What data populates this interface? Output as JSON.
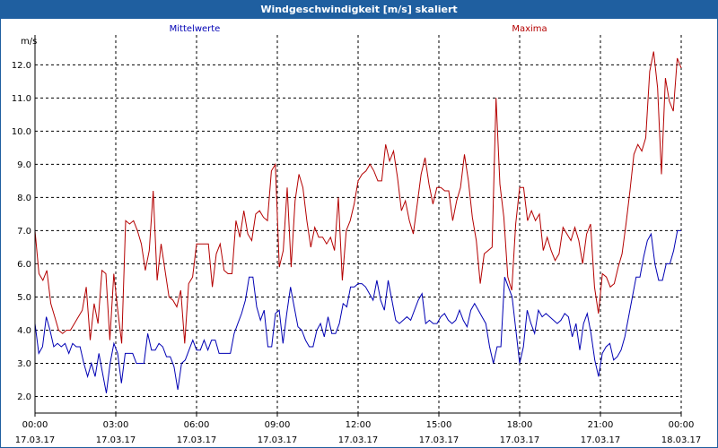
{
  "window": {
    "title": "Windgeschwindigkeit [m/s] skaliert"
  },
  "colors": {
    "titlebar": "#1f5fa0",
    "series_mittel": "#0000b4",
    "series_max": "#b40000",
    "grid": "#000000"
  },
  "chart_data": {
    "type": "line",
    "ylabel": "m/s",
    "ylim": [
      1.5,
      12.9
    ],
    "xlim": [
      0,
      1440
    ],
    "grid": true,
    "legend_placement": "top",
    "y_ticks": [
      "2.0",
      "3.0",
      "4.0",
      "5.0",
      "6.0",
      "7.0",
      "8.0",
      "9.0",
      "10.0",
      "11.0",
      "12.0"
    ],
    "x_ticks": [
      {
        "time": "00:00",
        "date": "17.03.17"
      },
      {
        "time": "03:00",
        "date": "17.03.17"
      },
      {
        "time": "06:00",
        "date": "17.03.17"
      },
      {
        "time": "09:00",
        "date": "17.03.17"
      },
      {
        "time": "12:00",
        "date": "17.03.17"
      },
      {
        "time": "15:00",
        "date": "17.03.17"
      },
      {
        "time": "18:00",
        "date": "17.03.17"
      },
      {
        "time": "21:00",
        "date": "17.03.17"
      },
      {
        "time": "00:00",
        "date": "18.03.17"
      }
    ],
    "series": [
      {
        "name": "Mittelwerte",
        "color": "#0000b4",
        "values": [
          4.2,
          3.3,
          3.5,
          4.4,
          4.0,
          3.5,
          3.6,
          3.5,
          3.6,
          3.3,
          3.6,
          3.5,
          3.5,
          3.0,
          2.6,
          3.0,
          2.6,
          3.3,
          2.7,
          2.1,
          3.0,
          3.6,
          3.3,
          2.4,
          3.3,
          3.3,
          3.3,
          3.0,
          3.0,
          3.0,
          3.9,
          3.4,
          3.4,
          3.6,
          3.5,
          3.2,
          3.2,
          2.9,
          2.2,
          3.0,
          3.1,
          3.4,
          3.7,
          3.4,
          3.4,
          3.7,
          3.4,
          3.7,
          3.7,
          3.3,
          3.3,
          3.3,
          3.3,
          3.9,
          4.2,
          4.5,
          4.9,
          5.6,
          5.6,
          4.7,
          4.3,
          4.6,
          3.5,
          3.5,
          4.5,
          4.6,
          3.6,
          4.5,
          5.3,
          4.7,
          4.1,
          4.0,
          3.7,
          3.5,
          3.5,
          4.0,
          4.2,
          3.8,
          4.4,
          3.9,
          3.9,
          4.2,
          4.8,
          4.7,
          5.3,
          5.3,
          5.4,
          5.4,
          5.3,
          5.1,
          4.9,
          5.5,
          4.9,
          4.6,
          5.5,
          4.9,
          4.3,
          4.2,
          4.3,
          4.4,
          4.3,
          4.6,
          4.9,
          5.1,
          4.2,
          4.3,
          4.2,
          4.2,
          4.4,
          4.5,
          4.3,
          4.2,
          4.3,
          4.6,
          4.3,
          4.1,
          4.6,
          4.8,
          4.6,
          4.4,
          4.2,
          3.5,
          3.0,
          3.5,
          3.5,
          5.6,
          5.3,
          5.0,
          4.0,
          3.0,
          3.5,
          4.6,
          4.2,
          3.9,
          4.6,
          4.4,
          4.5,
          4.4,
          4.3,
          4.2,
          4.3,
          4.5,
          4.4,
          3.8,
          4.2,
          3.4,
          4.2,
          4.5,
          3.9,
          3.1,
          2.6,
          3.3,
          3.5,
          3.6,
          3.1,
          3.2,
          3.4,
          3.8,
          4.4,
          5.0,
          5.6,
          5.6,
          6.2,
          6.7,
          6.9,
          6.0,
          5.5,
          5.5,
          6.0,
          6.0,
          6.4,
          7.0,
          7.0
        ]
      },
      {
        "name": "Maxima",
        "color": "#b40000",
        "values": [
          7.0,
          5.7,
          5.5,
          5.8,
          4.8,
          4.4,
          4.0,
          3.9,
          4.0,
          4.0,
          4.2,
          4.4,
          4.6,
          5.3,
          3.7,
          4.8,
          4.2,
          5.8,
          5.7,
          3.7,
          5.7,
          4.6,
          3.6,
          7.3,
          7.2,
          7.3,
          7.0,
          6.6,
          5.8,
          6.4,
          8.2,
          5.5,
          6.6,
          5.8,
          5.0,
          4.9,
          4.7,
          5.2,
          3.6,
          5.4,
          5.6,
          6.6,
          6.6,
          6.6,
          6.6,
          5.3,
          6.3,
          6.6,
          5.8,
          5.7,
          5.7,
          7.3,
          6.8,
          7.6,
          6.9,
          6.7,
          7.5,
          7.6,
          7.4,
          7.3,
          8.8,
          9.0,
          5.9,
          6.4,
          8.3,
          5.9,
          7.9,
          8.7,
          8.3,
          7.3,
          6.5,
          7.1,
          6.8,
          6.8,
          6.6,
          6.8,
          6.4,
          8.0,
          5.5,
          7.0,
          7.3,
          7.8,
          8.5,
          8.7,
          8.8,
          9.0,
          8.8,
          8.5,
          8.5,
          9.6,
          9.1,
          9.4,
          8.6,
          7.6,
          7.9,
          7.3,
          6.9,
          7.8,
          8.7,
          9.2,
          8.4,
          7.8,
          8.3,
          8.3,
          8.2,
          8.2,
          7.3,
          7.9,
          8.3,
          9.3,
          8.5,
          7.4,
          6.7,
          5.4,
          6.3,
          6.4,
          6.5,
          11.0,
          8.4,
          7.4,
          5.6,
          5.2,
          7.2,
          8.3,
          8.3,
          7.3,
          7.6,
          7.3,
          7.5,
          6.4,
          6.8,
          6.4,
          6.1,
          6.3,
          7.1,
          6.9,
          6.7,
          7.1,
          6.7,
          6.0,
          6.9,
          7.2,
          5.3,
          4.5,
          5.7,
          5.6,
          5.3,
          5.4,
          5.9,
          6.3,
          7.2,
          8.2,
          9.3,
          9.6,
          9.4,
          9.8,
          11.8,
          12.4,
          11.3,
          8.7,
          11.6,
          10.9,
          10.6,
          12.2,
          11.9
        ]
      }
    ]
  }
}
